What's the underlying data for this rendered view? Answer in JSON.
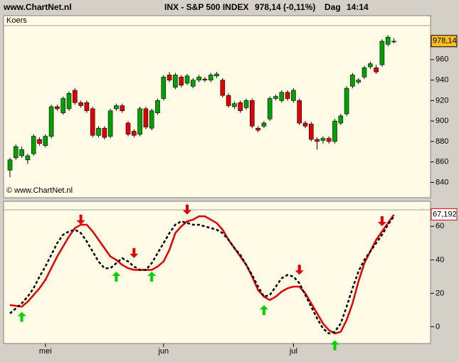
{
  "header": {
    "site": "www.ChartNet.nl",
    "symbol": "INX - S&P 500 INDEX",
    "quote": "978,14 (-0,11%)",
    "period": "Dag",
    "time": "14:14"
  },
  "chart_data": [
    {
      "type": "candlestick",
      "label": "Koers",
      "watermark": "© www.ChartNet.nl",
      "up_color": "#00a000",
      "down_color": "#e00000",
      "open": [
        852,
        864,
        866,
        862,
        868,
        882,
        876,
        885,
        914,
        908,
        912,
        930,
        918,
        918,
        912,
        886,
        893,
        885,
        912,
        915,
        898,
        890,
        887,
        912,
        893,
        908,
        922,
        945,
        933,
        943,
        937,
        934,
        940,
        941,
        940,
        944,
        940,
        925,
        914,
        918,
        913,
        920,
        893,
        895,
        902,
        922,
        920,
        928,
        920,
        920,
        898,
        897,
        882,
        881,
        883,
        880,
        898,
        907,
        934,
        938,
        943,
        953,
        952,
        955,
        975,
        978
      ],
      "high": [
        864,
        877,
        875,
        868,
        887,
        884,
        887,
        916,
        916,
        924,
        929,
        932,
        920,
        920,
        914,
        895,
        895,
        912,
        917,
        917,
        900,
        892,
        914,
        914,
        912,
        922,
        945,
        948,
        947,
        945,
        946,
        942,
        945,
        943,
        947,
        948,
        942,
        927,
        919,
        920,
        922,
        922,
        895,
        900,
        924,
        926,
        930,
        930,
        932,
        922,
        900,
        899,
        884,
        885,
        885,
        902,
        907,
        934,
        947,
        942,
        954,
        958,
        955,
        980,
        984,
        981
      ],
      "low": [
        845,
        862,
        864,
        858,
        866,
        876,
        874,
        883,
        910,
        906,
        910,
        916,
        913,
        908,
        884,
        884,
        882,
        883,
        910,
        908,
        885,
        884,
        885,
        892,
        891,
        906,
        920,
        938,
        931,
        933,
        935,
        932,
        938,
        938,
        938,
        942,
        923,
        913,
        912,
        908,
        911,
        893,
        889,
        893,
        900,
        920,
        918,
        920,
        918,
        896,
        893,
        880,
        872,
        878,
        878,
        878,
        896,
        905,
        932,
        936,
        941,
        951,
        946,
        953,
        973,
        976
      ],
      "close": [
        862,
        875,
        872,
        866,
        885,
        878,
        885,
        914,
        912,
        922,
        927,
        918,
        915,
        910,
        886,
        893,
        884,
        910,
        915,
        910,
        887,
        886,
        912,
        894,
        910,
        920,
        943,
        940,
        945,
        935,
        944,
        940,
        943,
        940,
        945,
        946,
        925,
        915,
        917,
        910,
        920,
        895,
        891,
        898,
        922,
        924,
        928,
        922,
        930,
        898,
        895,
        882,
        880,
        883,
        880,
        900,
        905,
        932,
        945,
        940,
        952,
        956,
        948,
        978,
        982,
        978
      ],
      "last": {
        "value": 978.14,
        "label": "978,14"
      },
      "last_color": "#ffc020",
      "ylim": [
        825,
        1003
      ],
      "yticks": [
        840,
        860,
        880,
        900,
        920,
        940,
        960
      ]
    },
    {
      "type": "line",
      "categories": [
        null,
        null,
        null,
        null,
        null,
        null,
        "mei",
        null,
        null,
        null,
        null,
        null,
        null,
        null,
        null,
        null,
        null,
        null,
        null,
        null,
        null,
        null,
        null,
        null,
        null,
        null,
        "jun",
        null,
        null,
        null,
        null,
        null,
        null,
        null,
        null,
        null,
        null,
        null,
        null,
        null,
        null,
        null,
        null,
        null,
        null,
        null,
        null,
        null,
        "jul",
        null,
        null,
        null,
        null,
        null,
        null,
        null,
        null,
        null,
        null,
        null,
        null,
        null,
        null,
        null,
        null,
        null
      ],
      "series": [
        {
          "color": "#e00000",
          "style": "solid",
          "values": [
            13,
            12.5,
            12,
            15,
            19,
            23,
            28,
            35,
            42,
            48,
            54,
            59,
            61,
            61,
            57,
            52,
            47,
            42,
            40,
            37,
            35,
            34,
            34,
            34,
            34,
            36,
            39,
            46,
            56,
            60,
            63,
            64,
            66,
            66,
            64,
            62,
            58,
            52,
            47,
            42,
            37,
            30,
            22,
            18,
            16,
            18,
            21,
            23,
            24,
            24,
            20,
            14,
            8,
            2,
            -2,
            -4,
            -3,
            4,
            14,
            27,
            38,
            45,
            52,
            57,
            62,
            67
          ]
        },
        {
          "color": "#000000",
          "style": "dashed",
          "values": [
            8,
            11,
            14,
            18,
            23,
            30,
            36,
            43,
            50,
            55,
            57,
            58,
            56,
            51,
            45,
            39,
            35,
            35,
            38,
            41,
            39,
            36,
            34,
            34,
            38,
            44,
            50,
            56,
            61,
            63,
            62,
            61,
            61,
            60,
            59,
            58,
            56,
            52,
            47,
            43,
            37,
            31,
            24,
            18,
            19,
            24,
            29,
            31,
            30,
            26,
            19,
            12,
            5,
            -1,
            -4,
            -3,
            2,
            12,
            23,
            33,
            40,
            45,
            50,
            55,
            61,
            66
          ]
        }
      ],
      "buy_signals": [
        2,
        18,
        24,
        43,
        55
      ],
      "buy_color": "#00d000",
      "sell_signals": [
        12,
        21,
        30,
        49,
        63
      ],
      "sell_color": "#e00000",
      "last": {
        "value": 67.192,
        "label": "67,192"
      },
      "ylim": [
        -10,
        75
      ],
      "yticks": [
        0,
        20,
        40,
        60
      ]
    }
  ]
}
